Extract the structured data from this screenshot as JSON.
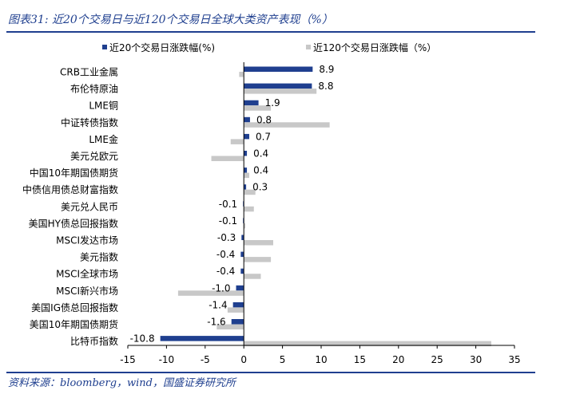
{
  "title": "图表31: 近20个交易日与近120个交易日全球大类资产表现（%）",
  "source": "资料来源：bloomberg，wind，国盛证券研究所",
  "colors": {
    "series1": "#1f3f8f",
    "series2": "#c8c8c8",
    "title": "#1f3f8f"
  },
  "chart_data": {
    "type": "bar",
    "orientation": "horizontal",
    "categories": [
      "CRB工业金属",
      "布伦特原油",
      "LME铜",
      "中证转债指数",
      "LME金",
      "美元兑欧元",
      "中国10年期国债期货",
      "中债信用债总财富指数",
      "美元兑人民币",
      "美国HY债总回报指数",
      "MSCI发达市场",
      "美元指数",
      "MSCI全球市场",
      "MSCI新兴市场",
      "美国IG债总回报指数",
      "美国10年期国债期货",
      "比特币指数"
    ],
    "series": [
      {
        "name": "近20个交易日涨跌幅(%)",
        "values": [
          8.9,
          8.8,
          1.9,
          0.8,
          0.7,
          0.4,
          0.4,
          0.3,
          -0.1,
          -0.1,
          -0.3,
          -0.4,
          -0.4,
          -1.0,
          -1.4,
          -1.6,
          -10.8
        ],
        "labels": [
          "8.9",
          "8.8",
          "1.9",
          "0.8",
          "0.7",
          "0.4",
          "0.4",
          "0.3",
          "-0.1",
          "-0.1",
          "-0.3",
          "-0.4",
          "-0.4",
          "-1.0",
          "-1.4",
          "-1.6",
          "-10.8"
        ]
      },
      {
        "name": "近120个交易日涨跌幅（%）",
        "values": [
          -0.6,
          9.4,
          3.5,
          11.1,
          -1.7,
          -4.2,
          0.7,
          1.5,
          1.3,
          0.2,
          3.8,
          3.5,
          2.2,
          -8.5,
          -2.1,
          -3.5,
          32.0
        ]
      }
    ],
    "xlim": [
      -15,
      35
    ],
    "xticks": [
      -15,
      -10,
      -5,
      0,
      5,
      10,
      15,
      20,
      25,
      30,
      35
    ],
    "legend": "top",
    "grid": false
  }
}
